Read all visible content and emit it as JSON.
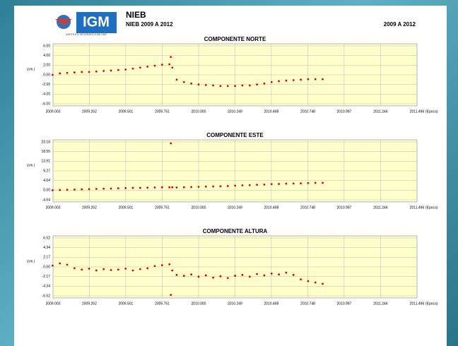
{
  "header": {
    "logo": "IGM",
    "institute": "INSTITUTO GEOGRAFICO MILITAR",
    "station": "NIEB",
    "subtitle": "NIEB 2009 A 2012",
    "range": "2009 A 2012"
  },
  "chart_data": [
    {
      "type": "scatter",
      "title": "COMPONENTE NORTE",
      "ylabel": "(cm.)",
      "xlabel": "(Epoca)",
      "color": "#e60000",
      "grid": true,
      "xlim": [
        2009.003,
        2011.496
      ],
      "ylim": [
        -6,
        6
      ],
      "xticks": [
        2009.003,
        2009.252,
        2009.501,
        2009.751,
        {
          "value": 2010,
          "label": "2010.000"
        },
        2010.249,
        2010.498,
        2010.748,
        2010.997,
        2011.246,
        2011.496
      ],
      "yticks": [
        {
          "value": 6,
          "label": "6.00"
        },
        {
          "value": 4,
          "label": "4.00"
        },
        {
          "value": 2,
          "label": "2.00"
        },
        {
          "value": 0,
          "label": "0.00"
        },
        {
          "value": -2,
          "label": "-2.00"
        },
        {
          "value": -4,
          "label": "-4.00"
        },
        {
          "value": -6,
          "label": "-6.00"
        }
      ],
      "x": [
        2009.0,
        2009.05,
        2009.1,
        2009.15,
        2009.2,
        2009.25,
        2009.3,
        2009.35,
        2009.4,
        2009.45,
        2009.5,
        2009.55,
        2009.6,
        2009.65,
        2009.7,
        2009.75,
        2009.8,
        2009.81,
        2009.82,
        2009.85,
        2009.9,
        2009.95,
        2010.0,
        2010.05,
        2010.1,
        2010.15,
        2010.2,
        2010.25,
        2010.3,
        2010.35,
        2010.4,
        2010.45,
        2010.5,
        2010.55,
        2010.6,
        2010.65,
        2010.7,
        2010.75,
        2010.8,
        2010.85
      ],
      "values": [
        0.0,
        0.3,
        0.4,
        0.5,
        0.6,
        0.6,
        0.7,
        0.8,
        0.9,
        1.0,
        1.1,
        1.3,
        1.5,
        1.7,
        1.9,
        2.1,
        2.2,
        3.7,
        1.5,
        -1.0,
        -1.5,
        -1.8,
        -2.0,
        -2.1,
        -2.2,
        -2.3,
        -2.3,
        -2.3,
        -2.2,
        -2.2,
        -2.0,
        -1.8,
        -1.5,
        -1.3,
        -1.2,
        -1.1,
        -1.0,
        -0.9,
        -0.9,
        -0.9
      ]
    },
    {
      "type": "scatter",
      "title": "COMPONENTE ESTE",
      "ylabel": "(cm.)",
      "xlabel": "(Epoca)",
      "color": "#e60000",
      "grid": true,
      "xlim": [
        2009.003,
        2011.496
      ],
      "ylim": [
        -4.64,
        23.18
      ],
      "xticks": [
        2009.003,
        2009.252,
        2009.501,
        2009.751,
        {
          "value": 2010,
          "label": "2010.000"
        },
        2010.249,
        2010.498,
        2010.748,
        2010.997,
        2011.246,
        2011.496
      ],
      "yticks": [
        23.18,
        18.55,
        13.91,
        9.27,
        4.64,
        {
          "value": 0,
          "label": "0.00"
        },
        -4.64
      ],
      "x": [
        2009.0,
        2009.05,
        2009.1,
        2009.15,
        2009.2,
        2009.25,
        2009.3,
        2009.35,
        2009.4,
        2009.45,
        2009.5,
        2009.55,
        2009.6,
        2009.65,
        2009.7,
        2009.75,
        2009.8,
        2009.81,
        2009.82,
        2009.85,
        2009.9,
        2009.95,
        2010.0,
        2010.05,
        2010.1,
        2010.15,
        2010.2,
        2010.25,
        2010.3,
        2010.35,
        2010.4,
        2010.45,
        2010.5,
        2010.55,
        2010.6,
        2010.65,
        2010.7,
        2010.75,
        2010.8,
        2010.85
      ],
      "values": [
        0.0,
        0.1,
        0.2,
        0.3,
        0.4,
        0.5,
        0.6,
        0.7,
        0.8,
        0.9,
        1.0,
        1.1,
        1.1,
        1.2,
        1.3,
        1.4,
        1.4,
        22.5,
        1.4,
        1.3,
        1.4,
        1.5,
        1.6,
        1.7,
        1.8,
        1.9,
        2.0,
        2.2,
        2.3,
        2.4,
        2.6,
        2.7,
        2.9,
        3.0,
        3.1,
        3.2,
        3.3,
        3.4,
        3.5,
        3.5
      ]
    },
    {
      "type": "scatter",
      "title": "COMPONENTE ALTURA",
      "ylabel": "(cm.)",
      "xlabel": "(Epoca)",
      "color": "#e60000",
      "grid": true,
      "xlim": [
        2009.003,
        2011.496
      ],
      "ylim": [
        -6.52,
        6.52
      ],
      "xticks": [
        2009.003,
        2009.252,
        2009.501,
        2009.751,
        {
          "value": 2010,
          "label": "2010.000"
        },
        2010.249,
        2010.498,
        2010.748,
        2010.997,
        2011.246,
        2011.496
      ],
      "yticks": [
        6.52,
        4.34,
        2.17,
        {
          "value": 0,
          "label": "0.00"
        },
        -2.17,
        -4.34,
        -6.52
      ],
      "x": [
        2009.0,
        2009.05,
        2009.1,
        2009.15,
        2009.2,
        2009.25,
        2009.3,
        2009.35,
        2009.4,
        2009.45,
        2009.5,
        2009.55,
        2009.6,
        2009.65,
        2009.7,
        2009.75,
        2009.8,
        2009.81,
        2009.82,
        2009.85,
        2009.9,
        2009.95,
        2010.0,
        2010.05,
        2010.1,
        2010.15,
        2010.2,
        2010.25,
        2010.3,
        2010.35,
        2010.4,
        2010.45,
        2010.5,
        2010.55,
        2010.6,
        2010.65,
        2010.7,
        2010.75,
        2010.8,
        2010.85
      ],
      "values": [
        0.3,
        0.8,
        0.5,
        -0.3,
        -0.6,
        -0.4,
        -0.8,
        -0.5,
        -0.7,
        -0.6,
        -0.4,
        -0.8,
        -0.5,
        -0.3,
        0.2,
        0.4,
        0.6,
        -6.3,
        -0.8,
        -1.8,
        -2.0,
        -1.7,
        -2.2,
        -1.9,
        -2.4,
        -2.1,
        -2.5,
        -2.0,
        -1.8,
        -2.2,
        -1.6,
        -1.9,
        -1.5,
        -1.7,
        -1.3,
        -1.8,
        -2.8,
        -3.2,
        -3.5,
        -3.8
      ]
    }
  ]
}
